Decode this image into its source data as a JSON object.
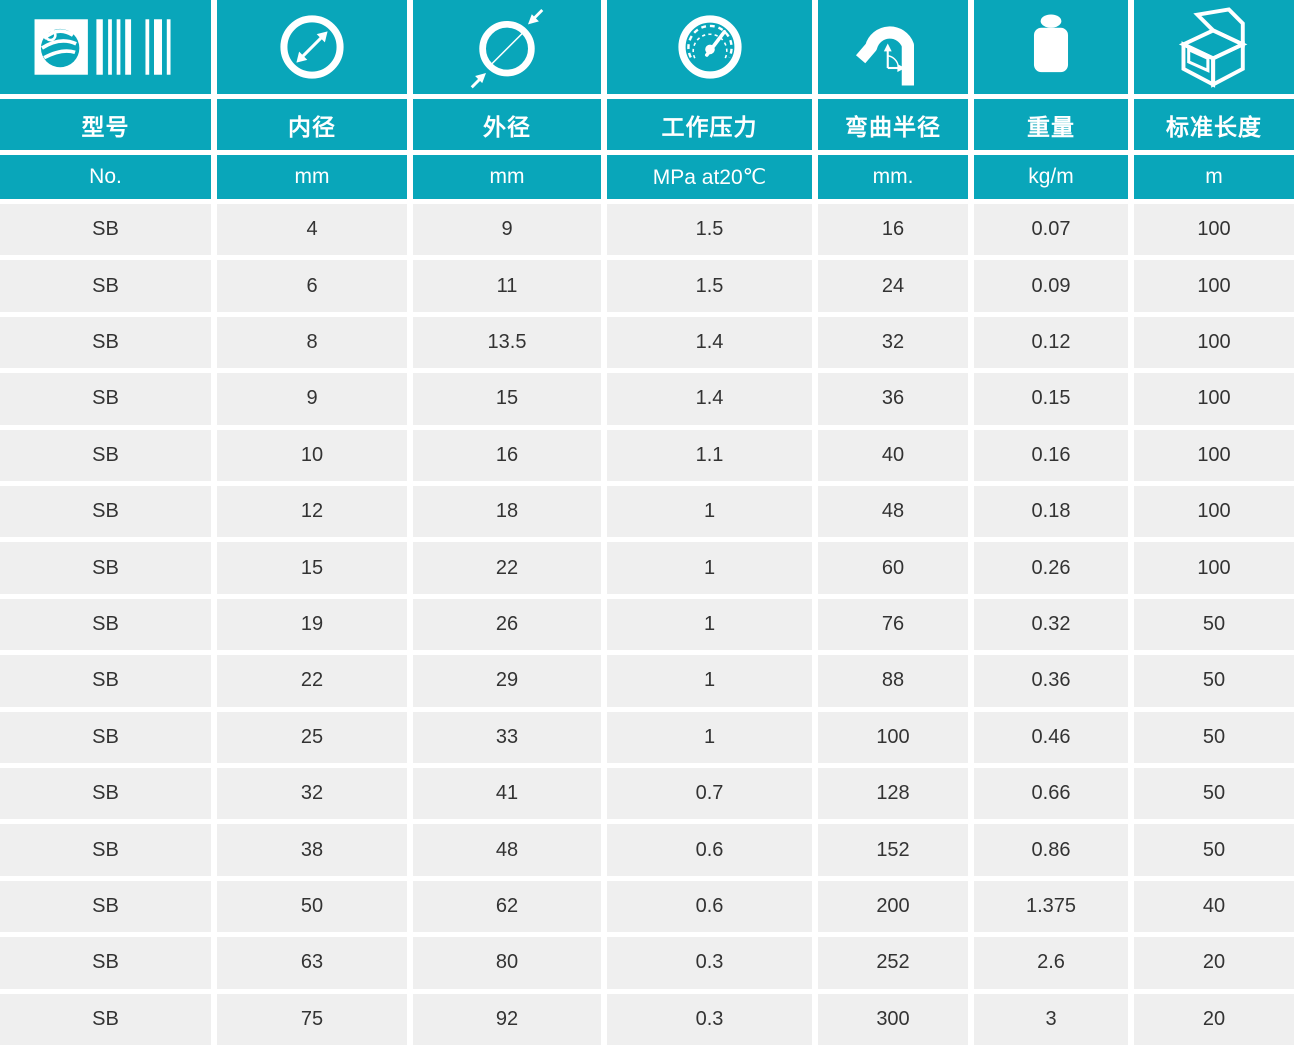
{
  "theme": {
    "accent_teal": "#09a6ba",
    "row_background": "#efefef",
    "separator": "#ffffff",
    "data_text": "#333333",
    "header_text": "#ffffff"
  },
  "table": {
    "columns": [
      {
        "id": "model",
        "icon": "logo-barcode-icon",
        "title": "型号",
        "unit": "No."
      },
      {
        "id": "inner-diameter",
        "icon": "inner-diameter-icon",
        "title": "内径",
        "unit": "mm"
      },
      {
        "id": "outer-diameter",
        "icon": "outer-diameter-icon",
        "title": "外径",
        "unit": "mm"
      },
      {
        "id": "working-pressure",
        "icon": "pressure-gauge-icon",
        "title": "工作压力",
        "unit": "MPa at20℃"
      },
      {
        "id": "bend-radius",
        "icon": "bend-radius-icon",
        "title": "弯曲半径",
        "unit": "mm."
      },
      {
        "id": "weight",
        "icon": "weight-icon",
        "title": "重量",
        "unit": "kg/m"
      },
      {
        "id": "standard-length",
        "icon": "carton-box-icon",
        "title": "标准长度",
        "unit": "m"
      }
    ],
    "rows": [
      [
        "SB",
        "4",
        "9",
        "1.5",
        "16",
        "0.07",
        "100"
      ],
      [
        "SB",
        "6",
        "11",
        "1.5",
        "24",
        "0.09",
        "100"
      ],
      [
        "SB",
        "8",
        "13.5",
        "1.4",
        "32",
        "0.12",
        "100"
      ],
      [
        "SB",
        "9",
        "15",
        "1.4",
        "36",
        "0.15",
        "100"
      ],
      [
        "SB",
        "10",
        "16",
        "1.1",
        "40",
        "0.16",
        "100"
      ],
      [
        "SB",
        "12",
        "18",
        "1",
        "48",
        "0.18",
        "100"
      ],
      [
        "SB",
        "15",
        "22",
        "1",
        "60",
        "0.26",
        "100"
      ],
      [
        "SB",
        "19",
        "26",
        "1",
        "76",
        "0.32",
        "50"
      ],
      [
        "SB",
        "22",
        "29",
        "1",
        "88",
        "0.36",
        "50"
      ],
      [
        "SB",
        "25",
        "33",
        "1",
        "100",
        "0.46",
        "50"
      ],
      [
        "SB",
        "32",
        "41",
        "0.7",
        "128",
        "0.66",
        "50"
      ],
      [
        "SB",
        "38",
        "48",
        "0.6",
        "152",
        "0.86",
        "50"
      ],
      [
        "SB",
        "50",
        "62",
        "0.6",
        "200",
        "1.375",
        "40"
      ],
      [
        "SB",
        "63",
        "80",
        "0.3",
        "252",
        "2.6",
        "20"
      ],
      [
        "SB",
        "75",
        "92",
        "0.3",
        "300",
        "3",
        "20"
      ]
    ]
  }
}
